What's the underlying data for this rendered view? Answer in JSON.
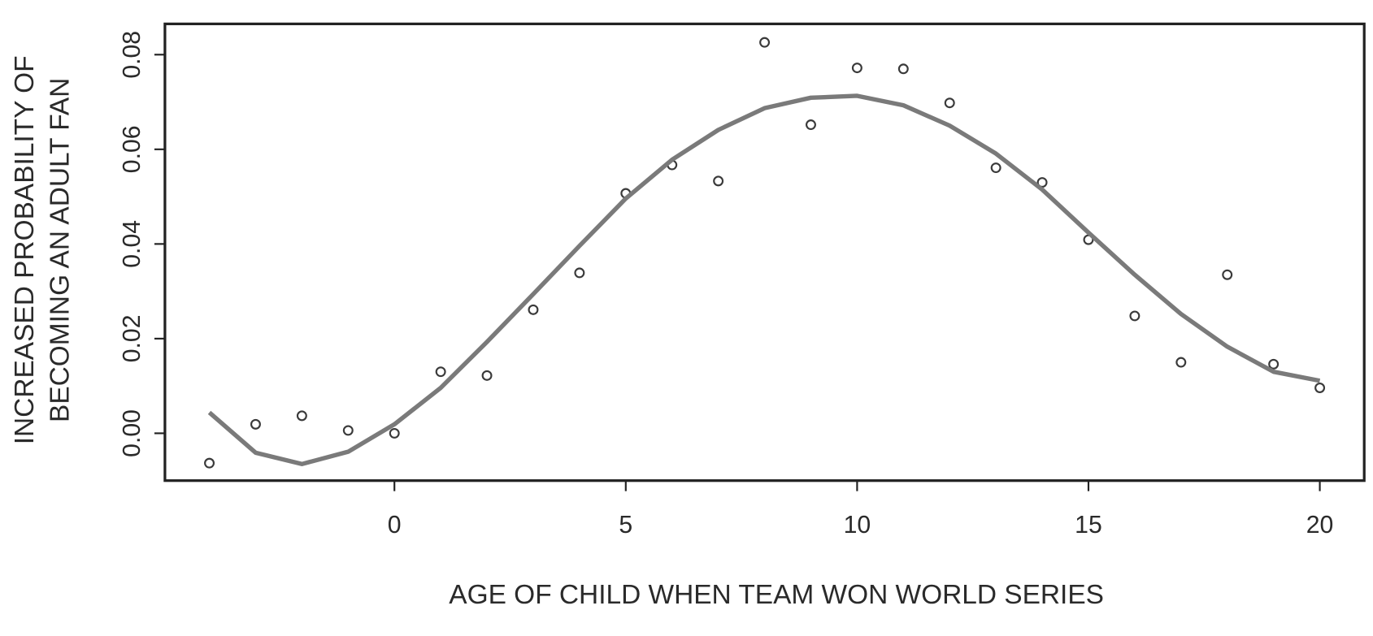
{
  "chart_data": {
    "type": "scatter",
    "xlabel": "AGE OF CHILD WHEN TEAM WON WORLD SERIES",
    "ylabel": [
      "INCREASED PROBABILITY OF",
      "BECOMING AN ADULT FAN"
    ],
    "x": [
      -4,
      -3,
      -2,
      -1,
      0,
      1,
      2,
      3,
      4,
      5,
      6,
      7,
      8,
      9,
      10,
      11,
      12,
      13,
      14,
      15,
      16,
      17,
      18,
      19,
      20
    ],
    "series": [
      {
        "type": "scatter",
        "color": "#3a3a3a",
        "values": [
          -0.0063,
          0.0019,
          0.0037,
          0.0006,
          0.0,
          0.013,
          0.0122,
          0.0261,
          0.0339,
          0.0507,
          0.0567,
          0.0533,
          0.0826,
          0.0652,
          0.0772,
          0.077,
          0.0698,
          0.0561,
          0.053,
          0.0409,
          0.0248,
          0.015,
          0.0335,
          0.0146,
          0.0096
        ]
      },
      {
        "type": "line",
        "color": "#7a7a7a",
        "values": [
          0.0044,
          -0.0041,
          -0.0065,
          -0.0039,
          0.0019,
          0.0096,
          0.0193,
          0.0294,
          0.0396,
          0.0496,
          0.0578,
          0.0641,
          0.0687,
          0.0709,
          0.0713,
          0.0693,
          0.065,
          0.0591,
          0.0515,
          0.0424,
          0.0335,
          0.0252,
          0.0183,
          0.013,
          0.0111
        ]
      }
    ],
    "xlim": [
      -4.96,
      20.96
    ],
    "ylim": [
      -0.01,
      0.0865
    ],
    "xticks": [
      0,
      5,
      10,
      15,
      20
    ],
    "yticks": [
      {
        "value": 0,
        "label": "0.00"
      },
      0.02,
      0.04,
      0.06,
      0.08
    ]
  }
}
